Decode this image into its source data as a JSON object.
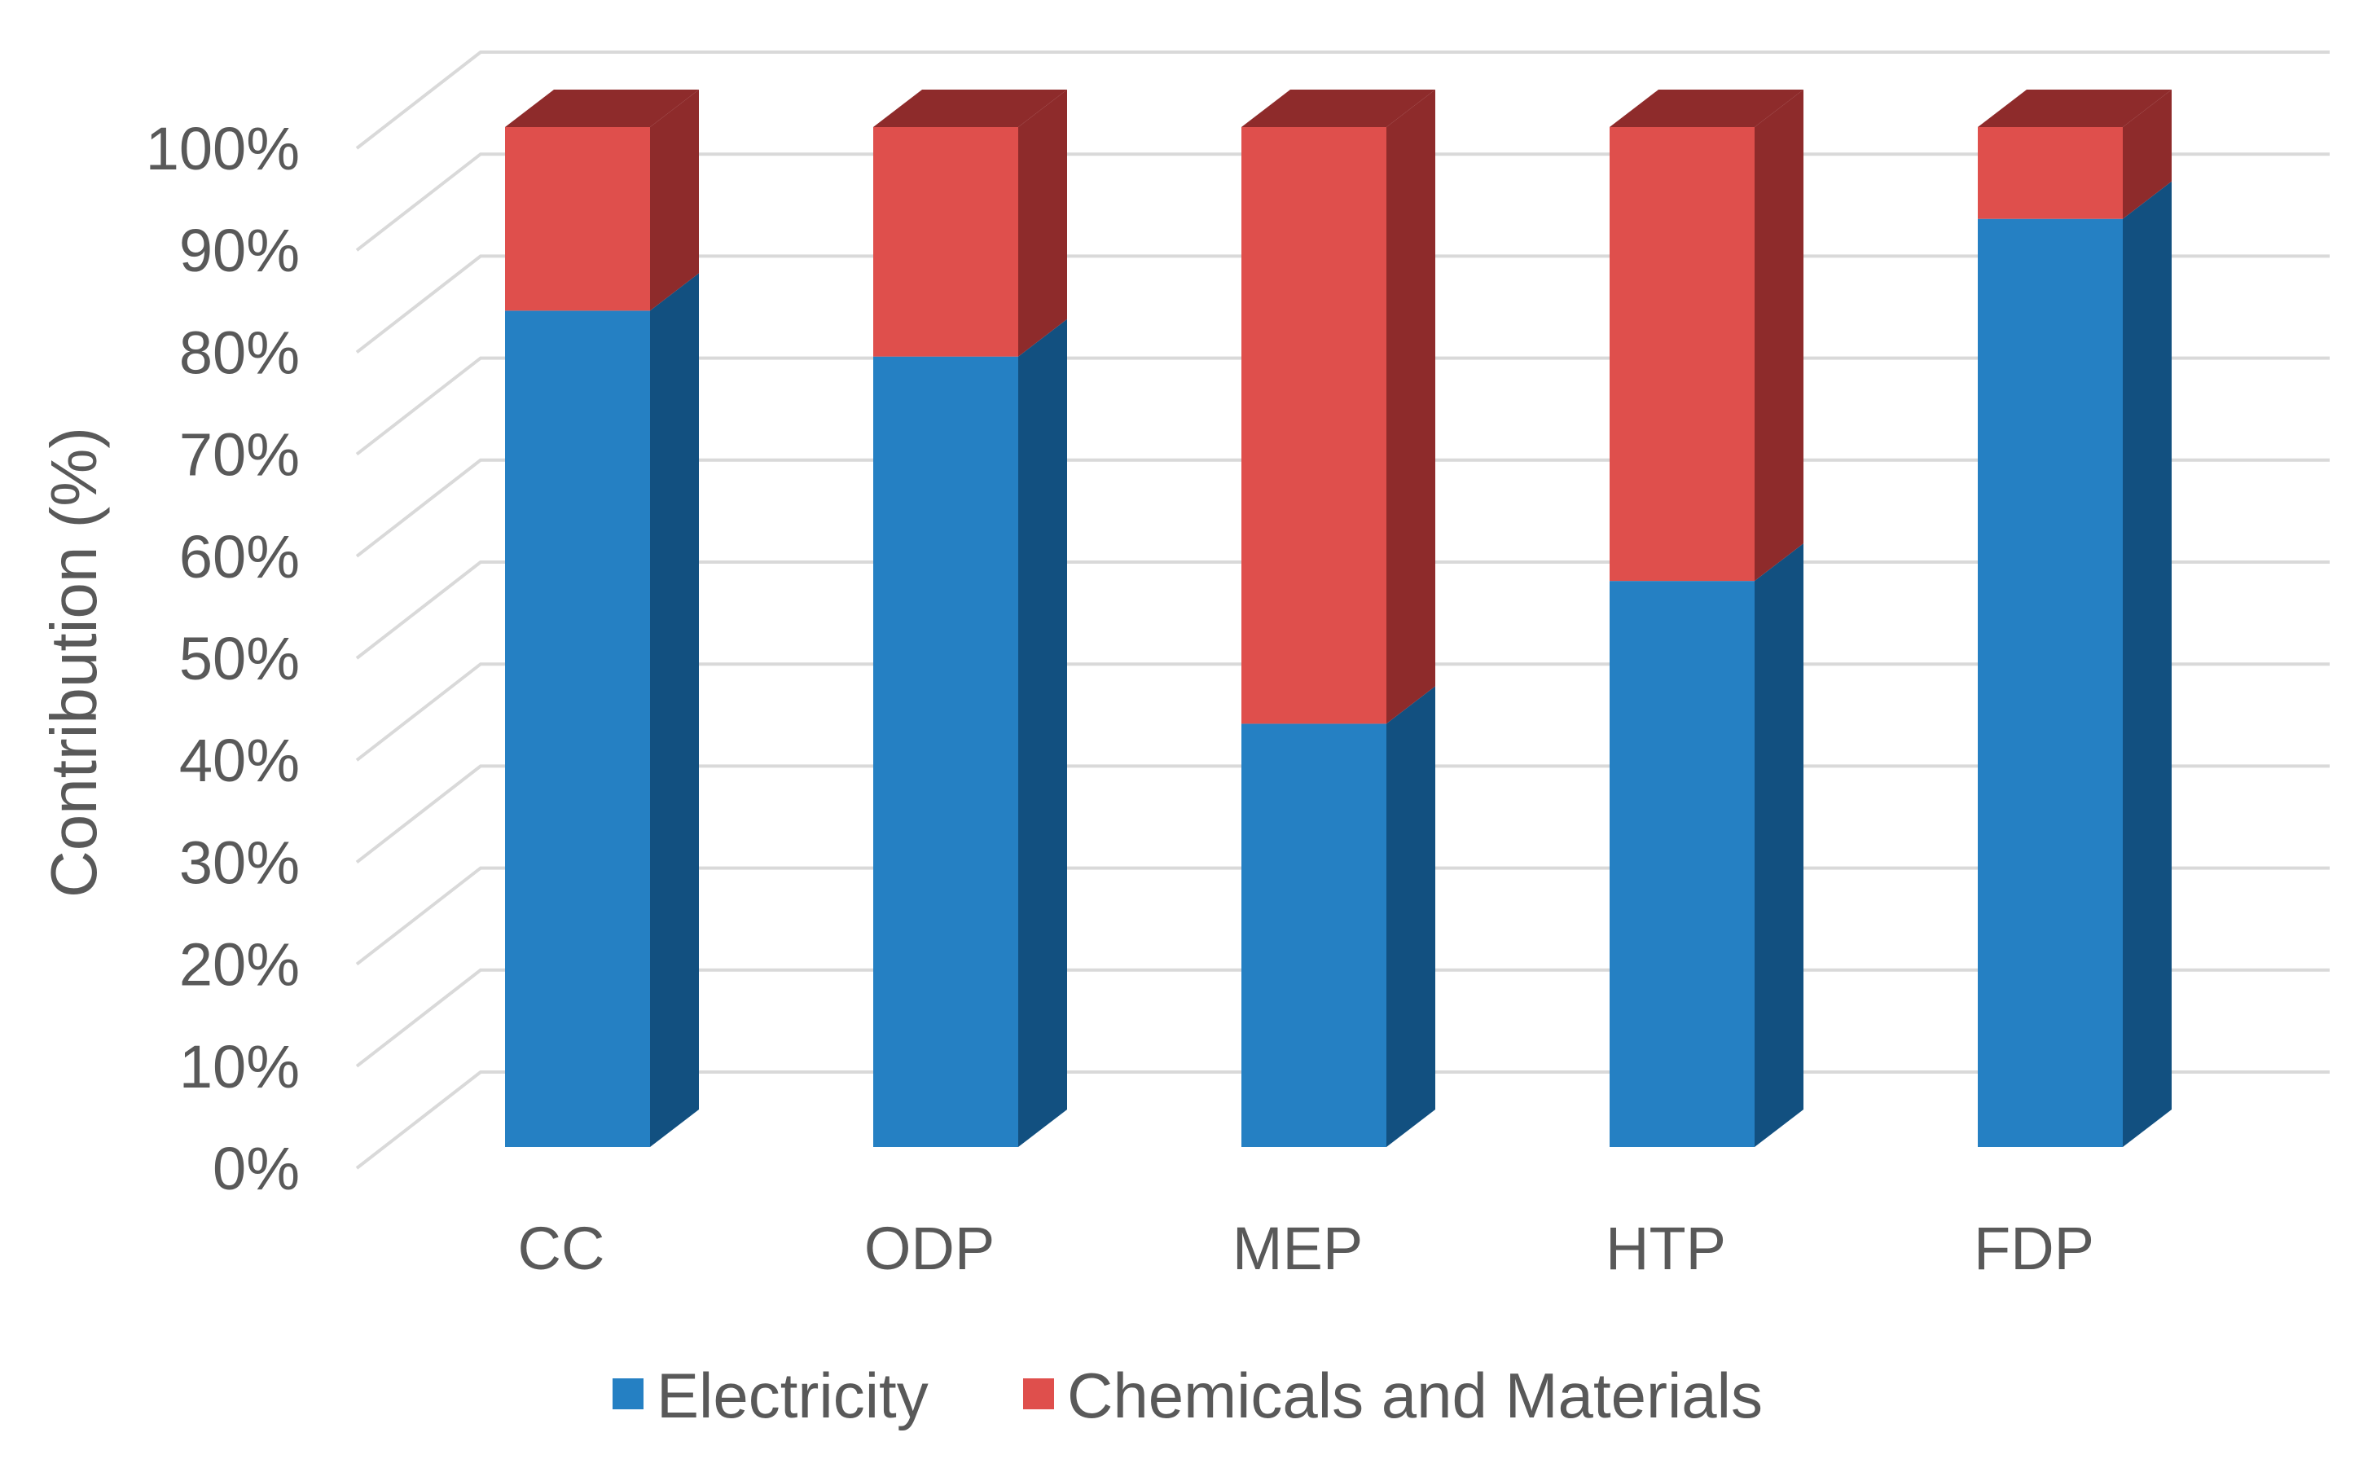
{
  "chart_data": {
    "type": "bar",
    "stacked": true,
    "style": "3d-column-100-percent",
    "categories": [
      "CC",
      "ODP",
      "MEP",
      "HTP",
      "FDP"
    ],
    "series": [
      {
        "name": "Electricity",
        "values": [
          82,
          77.5,
          41.5,
          55.5,
          91
        ],
        "color": "#2580c3",
        "side_color": "#125080"
      },
      {
        "name": "Chemicals and Materials",
        "values": [
          18,
          22.5,
          58.5,
          44.5,
          9
        ],
        "color": "#df4f4c",
        "side_color": "#8e2b2b"
      }
    ],
    "ylabel": "Contribution (%)",
    "xlabel": "",
    "ylim": [
      0,
      100
    ],
    "y_ticks": [
      "0%",
      "10%",
      "20%",
      "30%",
      "40%",
      "50%",
      "60%",
      "70%",
      "80%",
      "90%",
      "100%"
    ],
    "grid": true,
    "legend_position": "bottom"
  }
}
